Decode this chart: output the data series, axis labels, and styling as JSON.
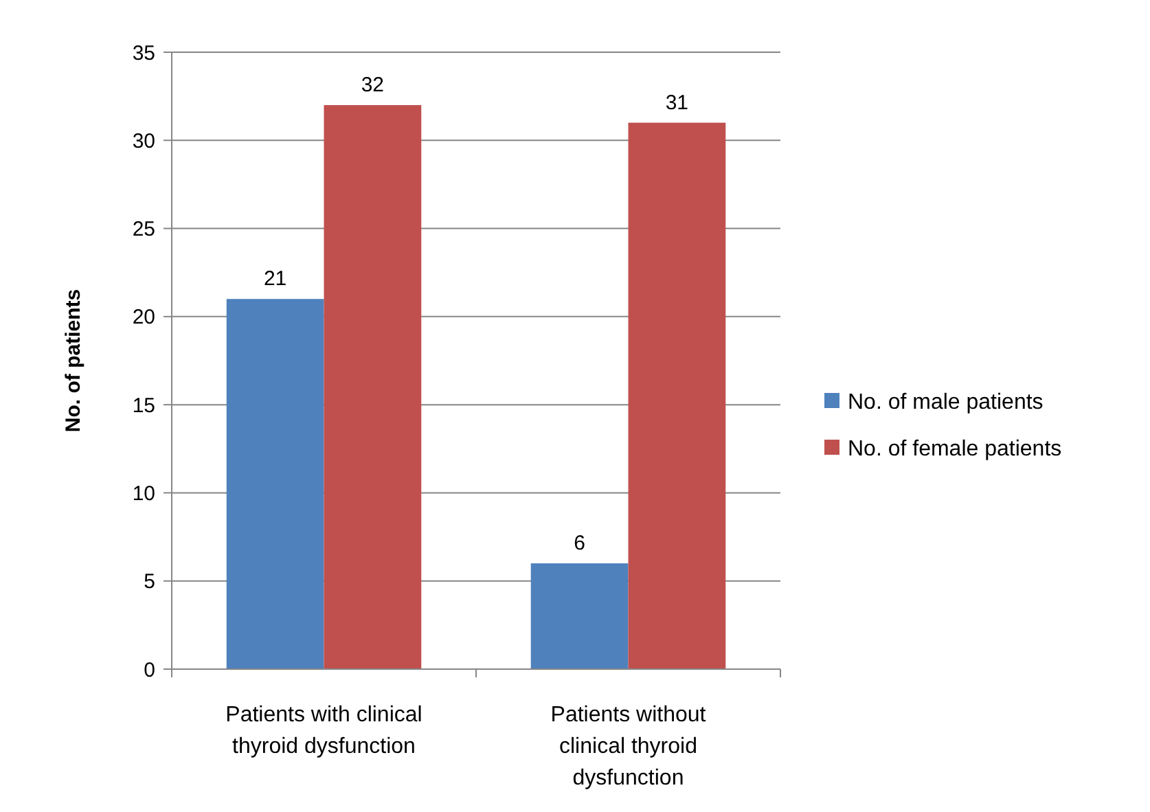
{
  "chart_data": {
    "type": "bar",
    "ylabel": "No. of patients",
    "categories": [
      "Patients with clinical thyroid dysfunction",
      "Patients without clinical thyroid dysfunction"
    ],
    "series": [
      {
        "name": "No. of male patients",
        "color": "#4f81bd",
        "values": [
          21,
          6
        ]
      },
      {
        "name": "No. of female patients",
        "color": "#c0504d",
        "values": [
          32,
          31
        ]
      }
    ],
    "ylim": [
      0,
      35
    ],
    "yticks": [
      0,
      5,
      10,
      15,
      20,
      25,
      30,
      35
    ],
    "grid": "y",
    "legend": "right",
    "data_labels": true
  }
}
